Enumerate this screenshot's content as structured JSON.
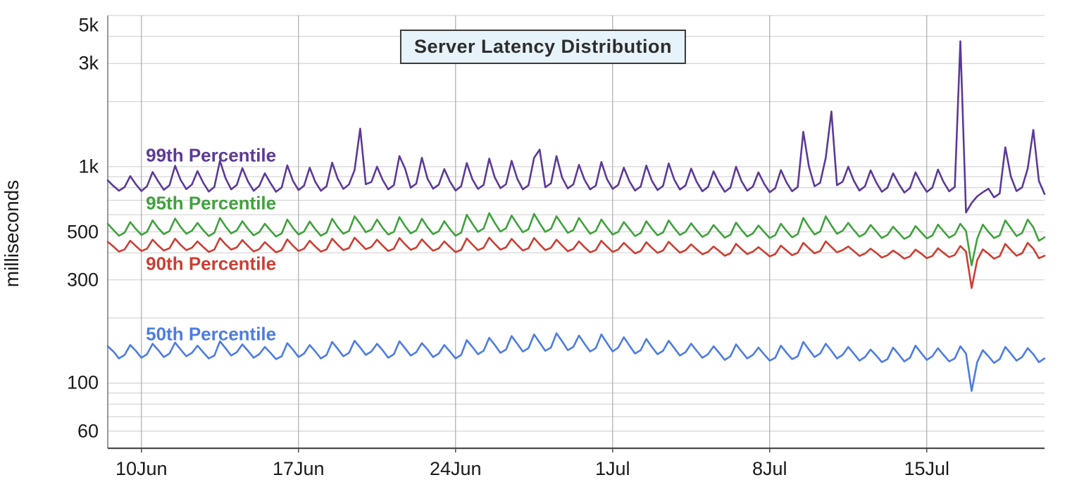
{
  "chart_data": {
    "type": "line",
    "title": "Server Latency Distribution",
    "ylabel": "milliseconds",
    "y_scale": "log",
    "ylim": [
      50,
      5000
    ],
    "xlim_days": [
      0,
      41.75
    ],
    "sample_interval_days": 0.25,
    "grid": "on",
    "legend_position": "inline-labels",
    "x_ticks": [
      {
        "day": 1.5,
        "label": "10Jun"
      },
      {
        "day": 8.5,
        "label": "17Jun"
      },
      {
        "day": 15.5,
        "label": "24Jun"
      },
      {
        "day": 22.5,
        "label": "1Jul"
      },
      {
        "day": 29.5,
        "label": "8Jul"
      },
      {
        "day": 36.5,
        "label": "15Jul"
      }
    ],
    "y_ticks": [
      {
        "value": 60,
        "label": "60"
      },
      {
        "value": 100,
        "label": "100"
      },
      {
        "value": 300,
        "label": "300"
      },
      {
        "value": 500,
        "label": "500"
      },
      {
        "value": 1000,
        "label": "1k"
      },
      {
        "value": 3000,
        "label": "3k"
      },
      {
        "value": 5000,
        "label": "5k"
      }
    ],
    "y_gridlines": [
      60,
      70,
      80,
      90,
      100,
      200,
      300,
      400,
      500,
      600,
      700,
      800,
      900,
      1000,
      2000,
      3000,
      4000,
      5000
    ],
    "series": [
      {
        "name": "99th Percentile",
        "color": "#5c3a98",
        "label_anchor": {
          "day": 1.7,
          "ms": 1130
        },
        "values": [
          865,
          815,
          775,
          805,
          905,
          830,
          772,
          812,
          945,
          855,
          782,
          820,
          1010,
          868,
          788,
          828,
          955,
          845,
          768,
          806,
          1065,
          885,
          786,
          824,
          985,
          855,
          774,
          815,
          932,
          840,
          766,
          802,
          1015,
          862,
          780,
          818,
          990,
          850,
          774,
          812,
          1045,
          880,
          790,
          828,
          965,
          1500,
          830,
          850,
          1000,
          870,
          786,
          822,
          1120,
          980,
          800,
          836,
          1100,
          880,
          792,
          826,
          975,
          855,
          776,
          812,
          1040,
          875,
          790,
          824,
          1090,
          892,
          796,
          830,
          1065,
          880,
          786,
          820,
          1100,
          1200,
          804,
          838,
          1120,
          890,
          794,
          828,
          1020,
          870,
          786,
          818,
          1052,
          876,
          790,
          824,
          990,
          856,
          776,
          810,
          1012,
          862,
          780,
          816,
          1035,
          870,
          784,
          820,
          980,
          850,
          770,
          806,
          952,
          842,
          766,
          800,
          1000,
          856,
          775,
          810,
          942,
          836,
          762,
          796,
          965,
          846,
          770,
          806,
          1450,
          1000,
          812,
          842,
          1100,
          1800,
          822,
          852,
          1000,
          862,
          776,
          812,
          962,
          846,
          766,
          800,
          932,
          836,
          760,
          796,
          942,
          840,
          765,
          800,
          970,
          850,
          770,
          806,
          3800,
          615,
          680,
          730,
          762,
          792,
          722,
          752,
          1230,
          900,
          772,
          802,
          980,
          1480,
          860,
          748
        ]
      },
      {
        "name": "95th Percentile",
        "color": "#3fa23c",
        "label_anchor": {
          "day": 1.7,
          "ms": 675
        },
        "values": [
          545,
          510,
          480,
          496,
          555,
          516,
          484,
          500,
          565,
          520,
          488,
          504,
          576,
          526,
          490,
          506,
          550,
          510,
          478,
          495,
          580,
          530,
          492,
          508,
          560,
          516,
          482,
          498,
          545,
          508,
          476,
          492,
          570,
          522,
          486,
          502,
          558,
          514,
          480,
          496,
          575,
          526,
          490,
          505,
          590,
          545,
          498,
          512,
          570,
          522,
          486,
          500,
          585,
          532,
          492,
          508,
          575,
          525,
          488,
          503,
          560,
          515,
          480,
          496,
          600,
          545,
          500,
          518,
          610,
          550,
          502,
          520,
          595,
          542,
          498,
          514,
          605,
          548,
          500,
          516,
          590,
          540,
          495,
          510,
          580,
          532,
          490,
          505,
          570,
          525,
          486,
          500,
          555,
          515,
          478,
          494,
          560,
          518,
          482,
          497,
          565,
          520,
          484,
          500,
          548,
          508,
          474,
          490,
          538,
          502,
          470,
          485,
          552,
          510,
          476,
          492,
          535,
          500,
          468,
          483,
          545,
          505,
          472,
          488,
          580,
          528,
          486,
          502,
          590,
          535,
          490,
          506,
          550,
          510,
          475,
          491,
          538,
          502,
          468,
          484,
          528,
          495,
          464,
          479,
          532,
          498,
          466,
          481,
          540,
          503,
          470,
          486,
          545,
          505,
          350,
          465,
          540,
          500,
          468,
          482,
          565,
          520,
          478,
          494,
          570,
          525,
          455,
          472
        ]
      },
      {
        "name": "90th Percentile",
        "color": "#cc3e33",
        "label_anchor": {
          "day": 1.7,
          "ms": 356
        },
        "values": [
          450,
          428,
          405,
          415,
          455,
          430,
          408,
          418,
          460,
          432,
          410,
          420,
          465,
          435,
          412,
          422,
          452,
          426,
          404,
          414,
          468,
          438,
          414,
          424,
          458,
          430,
          406,
          416,
          448,
          424,
          402,
          412,
          462,
          432,
          408,
          418,
          455,
          428,
          405,
          415,
          465,
          436,
          412,
          421,
          470,
          442,
          416,
          426,
          460,
          432,
          408,
          418,
          468,
          438,
          413,
          423,
          462,
          433,
          409,
          419,
          452,
          426,
          403,
          413,
          466,
          437,
          412,
          422,
          470,
          440,
          414,
          424,
          464,
          435,
          410,
          420,
          468,
          438,
          412,
          422,
          460,
          432,
          407,
          417,
          452,
          425,
          402,
          412,
          455,
          428,
          404,
          414,
          445,
          420,
          398,
          408,
          448,
          422,
          400,
          410,
          450,
          424,
          401,
          411,
          438,
          415,
          394,
          404,
          428,
          408,
          388,
          398,
          440,
          416,
          395,
          405,
          425,
          405,
          385,
          395,
          432,
          410,
          390,
          400,
          445,
          420,
          398,
          408,
          452,
          426,
          402,
          412,
          428,
          408,
          387,
          397,
          418,
          400,
          380,
          390,
          410,
          394,
          376,
          385,
          414,
          397,
          378,
          387,
          420,
          400,
          382,
          391,
          430,
          405,
          275,
          370,
          415,
          396,
          376,
          386,
          440,
          412,
          388,
          398,
          445,
          418,
          378,
          388
        ]
      },
      {
        "name": "50th Percentile",
        "color": "#4d7ce2",
        "label_anchor": {
          "day": 1.7,
          "ms": 168
        },
        "values": [
          148,
          140,
          130,
          135,
          150,
          141,
          131,
          136,
          152,
          142,
          132,
          137,
          154,
          143,
          133,
          138,
          149,
          139,
          130,
          134,
          156,
          145,
          134,
          139,
          151,
          141,
          131,
          136,
          147,
          138,
          129,
          133,
          153,
          143,
          132,
          137,
          150,
          140,
          130,
          135,
          155,
          144,
          133,
          138,
          157,
          146,
          135,
          140,
          152,
          142,
          131,
          136,
          156,
          145,
          134,
          139,
          153,
          143,
          132,
          137,
          150,
          140,
          130,
          135,
          158,
          147,
          136,
          141,
          162,
          150,
          138,
          143,
          165,
          152,
          140,
          145,
          168,
          154,
          141,
          146,
          170,
          156,
          142,
          147,
          166,
          152,
          140,
          145,
          168,
          153,
          140,
          146,
          163,
          149,
          137,
          142,
          160,
          147,
          136,
          141,
          157,
          145,
          134,
          139,
          152,
          141,
          131,
          136,
          148,
          138,
          128,
          133,
          151,
          140,
          130,
          135,
          146,
          136,
          127,
          131,
          149,
          138,
          129,
          133,
          155,
          143,
          132,
          137,
          152,
          141,
          130,
          135,
          147,
          137,
          127,
          132,
          143,
          134,
          125,
          129,
          146,
          136,
          126,
          131,
          149,
          138,
          128,
          133,
          145,
          135,
          126,
          130,
          148,
          137,
          92,
          125,
          142,
          133,
          124,
          129,
          147,
          137,
          127,
          132,
          145,
          136,
          125,
          130
        ]
      }
    ]
  },
  "colors": {
    "grid_minor": "#cccccc",
    "grid_week": "#ababab",
    "axis_left": "#7f7f7f",
    "axis_bottom": "#4d4d4d",
    "tick_text": "#1a1a1a",
    "title_text": "#2d2d2d",
    "title_bg": "#e7f3fa",
    "title_border": "#3a3a3a"
  }
}
